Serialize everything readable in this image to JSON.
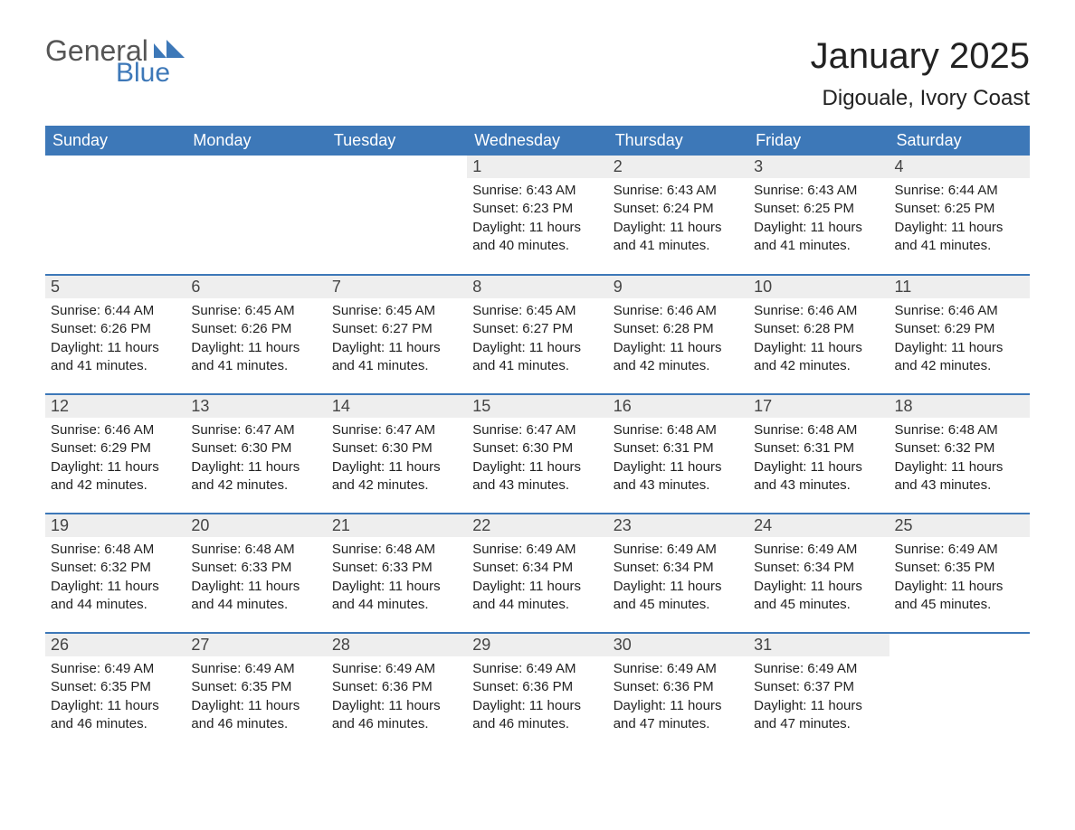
{
  "logo": {
    "text1": "General",
    "text2": "Blue",
    "shape_color": "#3d78b8",
    "text1_color": "#555555"
  },
  "header": {
    "month": "January 2025",
    "location": "Digouale, Ivory Coast"
  },
  "colors": {
    "header_bg": "#3d78b8",
    "header_fg": "#ffffff",
    "daynum_bg": "#eeeeee",
    "row_divider": "#3d78b8",
    "body_text": "#222222"
  },
  "layout": {
    "columns": 7,
    "leading_blanks": 3,
    "days_in_month": 31
  },
  "weekdays": [
    "Sunday",
    "Monday",
    "Tuesday",
    "Wednesday",
    "Thursday",
    "Friday",
    "Saturday"
  ],
  "labels": {
    "sunrise": "Sunrise:",
    "sunset": "Sunset:",
    "daylight_prefix": "Daylight:",
    "daylight_join": "and",
    "daylight_suffix": "minutes."
  },
  "days": [
    {
      "n": 1,
      "sunrise": "6:43 AM",
      "sunset": "6:23 PM",
      "dl_h": 11,
      "dl_m": 40
    },
    {
      "n": 2,
      "sunrise": "6:43 AM",
      "sunset": "6:24 PM",
      "dl_h": 11,
      "dl_m": 41
    },
    {
      "n": 3,
      "sunrise": "6:43 AM",
      "sunset": "6:25 PM",
      "dl_h": 11,
      "dl_m": 41
    },
    {
      "n": 4,
      "sunrise": "6:44 AM",
      "sunset": "6:25 PM",
      "dl_h": 11,
      "dl_m": 41
    },
    {
      "n": 5,
      "sunrise": "6:44 AM",
      "sunset": "6:26 PM",
      "dl_h": 11,
      "dl_m": 41
    },
    {
      "n": 6,
      "sunrise": "6:45 AM",
      "sunset": "6:26 PM",
      "dl_h": 11,
      "dl_m": 41
    },
    {
      "n": 7,
      "sunrise": "6:45 AM",
      "sunset": "6:27 PM",
      "dl_h": 11,
      "dl_m": 41
    },
    {
      "n": 8,
      "sunrise": "6:45 AM",
      "sunset": "6:27 PM",
      "dl_h": 11,
      "dl_m": 41
    },
    {
      "n": 9,
      "sunrise": "6:46 AM",
      "sunset": "6:28 PM",
      "dl_h": 11,
      "dl_m": 42
    },
    {
      "n": 10,
      "sunrise": "6:46 AM",
      "sunset": "6:28 PM",
      "dl_h": 11,
      "dl_m": 42
    },
    {
      "n": 11,
      "sunrise": "6:46 AM",
      "sunset": "6:29 PM",
      "dl_h": 11,
      "dl_m": 42
    },
    {
      "n": 12,
      "sunrise": "6:46 AM",
      "sunset": "6:29 PM",
      "dl_h": 11,
      "dl_m": 42
    },
    {
      "n": 13,
      "sunrise": "6:47 AM",
      "sunset": "6:30 PM",
      "dl_h": 11,
      "dl_m": 42
    },
    {
      "n": 14,
      "sunrise": "6:47 AM",
      "sunset": "6:30 PM",
      "dl_h": 11,
      "dl_m": 42
    },
    {
      "n": 15,
      "sunrise": "6:47 AM",
      "sunset": "6:30 PM",
      "dl_h": 11,
      "dl_m": 43
    },
    {
      "n": 16,
      "sunrise": "6:48 AM",
      "sunset": "6:31 PM",
      "dl_h": 11,
      "dl_m": 43
    },
    {
      "n": 17,
      "sunrise": "6:48 AM",
      "sunset": "6:31 PM",
      "dl_h": 11,
      "dl_m": 43
    },
    {
      "n": 18,
      "sunrise": "6:48 AM",
      "sunset": "6:32 PM",
      "dl_h": 11,
      "dl_m": 43
    },
    {
      "n": 19,
      "sunrise": "6:48 AM",
      "sunset": "6:32 PM",
      "dl_h": 11,
      "dl_m": 44
    },
    {
      "n": 20,
      "sunrise": "6:48 AM",
      "sunset": "6:33 PM",
      "dl_h": 11,
      "dl_m": 44
    },
    {
      "n": 21,
      "sunrise": "6:48 AM",
      "sunset": "6:33 PM",
      "dl_h": 11,
      "dl_m": 44
    },
    {
      "n": 22,
      "sunrise": "6:49 AM",
      "sunset": "6:34 PM",
      "dl_h": 11,
      "dl_m": 44
    },
    {
      "n": 23,
      "sunrise": "6:49 AM",
      "sunset": "6:34 PM",
      "dl_h": 11,
      "dl_m": 45
    },
    {
      "n": 24,
      "sunrise": "6:49 AM",
      "sunset": "6:34 PM",
      "dl_h": 11,
      "dl_m": 45
    },
    {
      "n": 25,
      "sunrise": "6:49 AM",
      "sunset": "6:35 PM",
      "dl_h": 11,
      "dl_m": 45
    },
    {
      "n": 26,
      "sunrise": "6:49 AM",
      "sunset": "6:35 PM",
      "dl_h": 11,
      "dl_m": 46
    },
    {
      "n": 27,
      "sunrise": "6:49 AM",
      "sunset": "6:35 PM",
      "dl_h": 11,
      "dl_m": 46
    },
    {
      "n": 28,
      "sunrise": "6:49 AM",
      "sunset": "6:36 PM",
      "dl_h": 11,
      "dl_m": 46
    },
    {
      "n": 29,
      "sunrise": "6:49 AM",
      "sunset": "6:36 PM",
      "dl_h": 11,
      "dl_m": 46
    },
    {
      "n": 30,
      "sunrise": "6:49 AM",
      "sunset": "6:36 PM",
      "dl_h": 11,
      "dl_m": 47
    },
    {
      "n": 31,
      "sunrise": "6:49 AM",
      "sunset": "6:37 PM",
      "dl_h": 11,
      "dl_m": 47
    }
  ]
}
